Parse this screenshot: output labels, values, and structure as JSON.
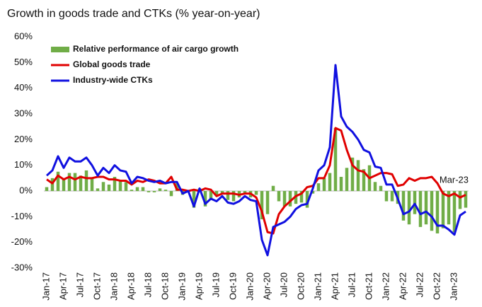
{
  "chart_data": {
    "type": "bar",
    "title": "Growth in goods trade and CTKs (% year-on-year)",
    "categories": [
      "Jan-17",
      null,
      null,
      "Apr-17",
      null,
      null,
      "Jul-17",
      null,
      null,
      "Oct-17",
      null,
      null,
      "Jan-18",
      null,
      null,
      "Apr-18",
      null,
      null,
      "Jul-18",
      null,
      null,
      "Oct-18",
      null,
      null,
      "Jan-19",
      null,
      null,
      "Apr-19",
      null,
      null,
      "Jul-19",
      null,
      null,
      "Oct-19",
      null,
      null,
      "Jan-20",
      null,
      null,
      "Apr-20",
      null,
      null,
      "Jul-20",
      null,
      null,
      "Oct-20",
      null,
      null,
      "Jan-21",
      null,
      null,
      "Apr-21",
      null,
      null,
      "Jul-21",
      null,
      null,
      "Oct-21",
      null,
      null,
      "Jan-22",
      null,
      null,
      "Apr-22",
      null,
      null,
      "Jul-22",
      null,
      null,
      "Oct-22",
      null,
      null,
      "Jan-23",
      null,
      null
    ],
    "series": [
      {
        "name": "Relative performance of air cargo growth",
        "type": "bar",
        "color": "#70ad47",
        "values": [
          1.5,
          5,
          7.5,
          4.5,
          7,
          7,
          6,
          8,
          5,
          1,
          3.5,
          2.5,
          5.5,
          4,
          3.5,
          0.5,
          1.5,
          1.5,
          -0.5,
          -0.5,
          1,
          0.5,
          -2,
          3,
          -1.5,
          0,
          -6.5,
          1,
          -6,
          -3.5,
          -2,
          -1,
          -3.5,
          -4,
          -2.5,
          -1,
          -2.5,
          -1.5,
          -11,
          -9,
          2,
          -4,
          -6,
          -6,
          -5,
          -4.5,
          -6.5,
          -1,
          3,
          5,
          7,
          24.5,
          5.5,
          9,
          13,
          12,
          8.5,
          10,
          3.5,
          2,
          -4,
          -4,
          -5,
          -11.5,
          -13,
          -9,
          -14,
          -13,
          -15.5,
          -16.5,
          -14.5,
          -13,
          -16,
          -7,
          -6.5
        ]
      },
      {
        "name": "Global goods trade",
        "type": "line",
        "color": "#e00000",
        "values": [
          4.5,
          3,
          6,
          4.5,
          5.5,
          4.5,
          5.5,
          5,
          5,
          5.5,
          5.5,
          4.5,
          4.5,
          4,
          4,
          2.5,
          4,
          3.5,
          4.5,
          4,
          3,
          3,
          5.5,
          0.5,
          0.5,
          0,
          0.5,
          0,
          1,
          0.5,
          -2,
          -1,
          -1,
          -1,
          -1.5,
          -1,
          -1,
          -2.5,
          -8,
          -16,
          -16.5,
          -9,
          -6,
          -4,
          -2,
          -1,
          1.5,
          2,
          5,
          5,
          10,
          24.5,
          23.5,
          16,
          10,
          8,
          7.5,
          5,
          6,
          7,
          7,
          6.5,
          2,
          2.5,
          5,
          4,
          5,
          5,
          5.5,
          3,
          -1,
          -2,
          -1,
          -2.5,
          -1.5
        ]
      },
      {
        "name": "Industry-wide CTKs",
        "type": "line",
        "color": "#1010e0",
        "values": [
          6,
          8,
          13.5,
          9,
          13,
          11.5,
          11.5,
          13,
          10,
          6,
          9,
          7,
          10,
          8,
          7.5,
          3,
          5.5,
          5,
          4,
          3.5,
          4,
          3,
          3.5,
          3.5,
          -1,
          0,
          -6,
          1,
          -5,
          -3,
          -4,
          -2,
          -4.5,
          -5,
          -4,
          -2,
          -3.5,
          -4,
          -19,
          -25,
          -14,
          -13,
          -12,
          -10,
          -7,
          -5.5,
          -5,
          1,
          8,
          10,
          17,
          49,
          29,
          25,
          23,
          20,
          16,
          15,
          9.5,
          9,
          2.5,
          2.5,
          -3,
          -9,
          -8,
          -5,
          -9,
          -8,
          -10,
          -13.5,
          -13.5,
          -15,
          -17,
          -9.5,
          -8
        ]
      }
    ],
    "ylim": [
      -30,
      60
    ],
    "yticks": [
      {
        "value": -30,
        "label": "-30%"
      },
      {
        "value": -20,
        "label": "-20%"
      },
      {
        "value": -10,
        "label": "-10%"
      },
      {
        "value": 0,
        "label": "0%"
      },
      {
        "value": 10,
        "label": "10%"
      },
      {
        "value": 20,
        "label": "20%"
      },
      {
        "value": 30,
        "label": "30%"
      },
      {
        "value": 40,
        "label": "40%"
      },
      {
        "value": 50,
        "label": "50%"
      },
      {
        "value": 60,
        "label": "60%"
      }
    ],
    "annotation": "Mar-23",
    "legend": "upper left"
  }
}
